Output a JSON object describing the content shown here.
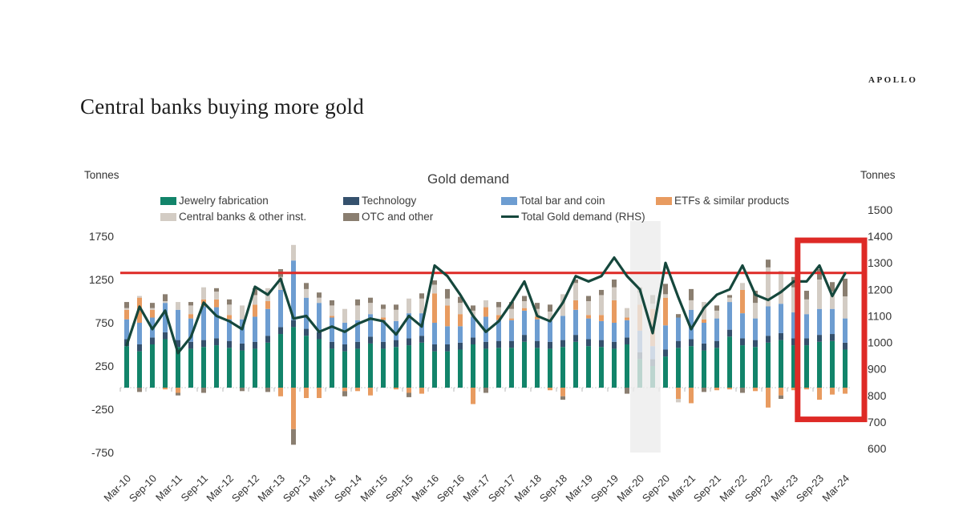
{
  "page": {
    "title": "Central banks buying more gold",
    "brand": "APOLLO"
  },
  "chart_data": {
    "type": "bar",
    "subtype": "stacked-bar-with-line",
    "title": "Gold demand",
    "left_axis": {
      "label": "Tonnes",
      "ticks": [
        1750,
        1250,
        750,
        250,
        -250,
        -750
      ],
      "min": -750,
      "max": 1750
    },
    "right_axis": {
      "label": "Tonnes",
      "ticks": [
        1500,
        1400,
        1300,
        1200,
        1100,
        1000,
        900,
        800,
        700,
        600
      ],
      "min": 600,
      "max": 1500
    },
    "categories": [
      "Mar-10",
      "Jun-10",
      "Sep-10",
      "Dec-10",
      "Mar-11",
      "Jun-11",
      "Sep-11",
      "Dec-11",
      "Mar-12",
      "Jun-12",
      "Sep-12",
      "Dec-12",
      "Mar-13",
      "Jun-13",
      "Sep-13",
      "Dec-13",
      "Mar-14",
      "Jun-14",
      "Sep-14",
      "Dec-14",
      "Mar-15",
      "Jun-15",
      "Sep-15",
      "Dec-15",
      "Mar-16",
      "Jun-16",
      "Sep-16",
      "Dec-16",
      "Mar-17",
      "Jun-17",
      "Sep-17",
      "Dec-17",
      "Mar-18",
      "Jun-18",
      "Sep-18",
      "Dec-18",
      "Mar-19",
      "Jun-19",
      "Sep-19",
      "Dec-19",
      "Mar-20",
      "Jun-20",
      "Sep-20",
      "Dec-20",
      "Mar-21",
      "Jun-21",
      "Sep-21",
      "Dec-21",
      "Mar-22",
      "Jun-22",
      "Sep-22",
      "Dec-22",
      "Mar-23",
      "Jun-23",
      "Sep-23",
      "Dec-23",
      "Mar-24"
    ],
    "x_tick_every": 2,
    "series": [
      {
        "name": "Jewelry fabrication",
        "color": "#12846A",
        "values": [
          480,
          420,
          500,
          560,
          470,
          450,
          470,
          490,
          460,
          430,
          450,
          520,
          620,
          700,
          600,
          560,
          450,
          420,
          450,
          510,
          450,
          470,
          490,
          520,
          420,
          420,
          440,
          500,
          450,
          460,
          460,
          530,
          460,
          450,
          470,
          530,
          480,
          470,
          450,
          500,
          330,
          250,
          360,
          460,
          480,
          430,
          460,
          590,
          490,
          470,
          520,
          550,
          490,
          490,
          530,
          540,
          440
        ]
      },
      {
        "name": "Technology",
        "color": "#35516D",
        "values": [
          80,
          80,
          80,
          80,
          80,
          80,
          80,
          80,
          80,
          80,
          80,
          80,
          80,
          80,
          80,
          80,
          80,
          80,
          80,
          80,
          80,
          80,
          80,
          80,
          80,
          80,
          80,
          80,
          80,
          80,
          80,
          80,
          80,
          80,
          80,
          80,
          80,
          80,
          80,
          80,
          80,
          80,
          80,
          80,
          80,
          80,
          80,
          80,
          80,
          80,
          80,
          80,
          80,
          80,
          80,
          80,
          80
        ]
      },
      {
        "name": "Total bar and coin",
        "color": "#6D9DD1",
        "values": [
          230,
          250,
          230,
          340,
          350,
          270,
          390,
          360,
          250,
          280,
          290,
          310,
          430,
          690,
          360,
          340,
          280,
          250,
          250,
          260,
          250,
          220,
          290,
          260,
          250,
          210,
          190,
          240,
          290,
          240,
          240,
          280,
          250,
          240,
          280,
          290,
          240,
          220,
          220,
          200,
          250,
          150,
          280,
          270,
          340,
          240,
          260,
          320,
          290,
          250,
          340,
          340,
          300,
          280,
          300,
          290,
          280
        ]
      },
      {
        "name": "ETFs & similar products",
        "color": "#E89B60",
        "values": [
          110,
          290,
          90,
          -20,
          -60,
          50,
          80,
          90,
          50,
          0,
          140,
          90,
          -100,
          -480,
          -120,
          -120,
          20,
          -40,
          -40,
          -90,
          30,
          -20,
          -60,
          -70,
          340,
          240,
          140,
          -190,
          110,
          60,
          20,
          30,
          30,
          -30,
          -100,
          110,
          40,
          70,
          260,
          30,
          300,
          430,
          320,
          -130,
          -180,
          40,
          -30,
          -20,
          270,
          -40,
          -230,
          -90,
          -30,
          -20,
          -140,
          -80,
          -70
        ]
      },
      {
        "name": "Central banks & other inst.",
        "color": "#D3CCC4",
        "values": [
          20,
          20,
          20,
          20,
          90,
          100,
          140,
          90,
          120,
          160,
          110,
          150,
          150,
          180,
          100,
          60,
          120,
          160,
          170,
          130,
          100,
          130,
          170,
          170,
          100,
          80,
          130,
          70,
          80,
          90,
          110,
          80,
          90,
          110,
          250,
          200,
          160,
          230,
          150,
          110,
          140,
          60,
          40,
          -40,
          110,
          200,
          90,
          50,
          80,
          180,
          450,
          380,
          290,
          170,
          340,
          200,
          255
        ]
      },
      {
        "name": "OTC and other",
        "color": "#8A7E70",
        "values": [
          70,
          -50,
          60,
          80,
          -30,
          40,
          -60,
          40,
          60,
          -40,
          80,
          -50,
          90,
          -180,
          70,
          60,
          60,
          -60,
          70,
          60,
          50,
          60,
          -50,
          60,
          50,
          110,
          70,
          60,
          -60,
          60,
          80,
          60,
          70,
          80,
          -40,
          40,
          60,
          60,
          90,
          -70,
          60,
          100,
          120,
          40,
          130,
          -50,
          60,
          30,
          -60,
          140,
          90,
          -40,
          120,
          100,
          120,
          110,
          205
        ]
      }
    ],
    "line_series": {
      "name": "Total Gold demand (RHS)",
      "color": "#15473C",
      "axis": "right",
      "values": [
        990,
        1135,
        1050,
        1120,
        960,
        1020,
        1150,
        1100,
        1080,
        1050,
        1210,
        1180,
        1240,
        1090,
        1100,
        1040,
        1060,
        1040,
        1070,
        1090,
        1080,
        1030,
        1100,
        1060,
        1290,
        1250,
        1180,
        1100,
        1040,
        1080,
        1150,
        1230,
        1100,
        1080,
        1150,
        1250,
        1230,
        1250,
        1320,
        1250,
        1200,
        1035,
        1300,
        1170,
        1050,
        1130,
        1180,
        1200,
        1290,
        1180,
        1160,
        1190,
        1230,
        1230,
        1290,
        1175,
        1260
      ]
    },
    "legend": [
      {
        "label": "Jewelry fabrication",
        "color": "#12846A",
        "kind": "rect"
      },
      {
        "label": "Technology",
        "color": "#35516D",
        "kind": "rect"
      },
      {
        "label": "Total bar and coin",
        "color": "#6D9DD1",
        "kind": "rect"
      },
      {
        "label": "ETFs & similar products",
        "color": "#E89B60",
        "kind": "rect"
      },
      {
        "label": "Central banks & other inst.",
        "color": "#D3CCC4",
        "kind": "rect"
      },
      {
        "label": "OTC and other",
        "color": "#8A7E70",
        "kind": "rect"
      },
      {
        "label": "Total Gold demand (RHS)",
        "color": "#15473C",
        "kind": "line"
      }
    ],
    "annotations": {
      "reference_line": {
        "axis": "right",
        "value": 1262,
        "color": "#DE2A26"
      },
      "shaded_band": {
        "start_index": 40,
        "end_index": 41,
        "color": "#ECECEC",
        "opacity": 0.78
      },
      "highlight_box": {
        "start_index": 53,
        "end_index": 56,
        "top_right_value": 1385,
        "bottom_right_value": 710,
        "color": "#DE2A26"
      }
    },
    "grid": "off",
    "legend_position": "top"
  }
}
